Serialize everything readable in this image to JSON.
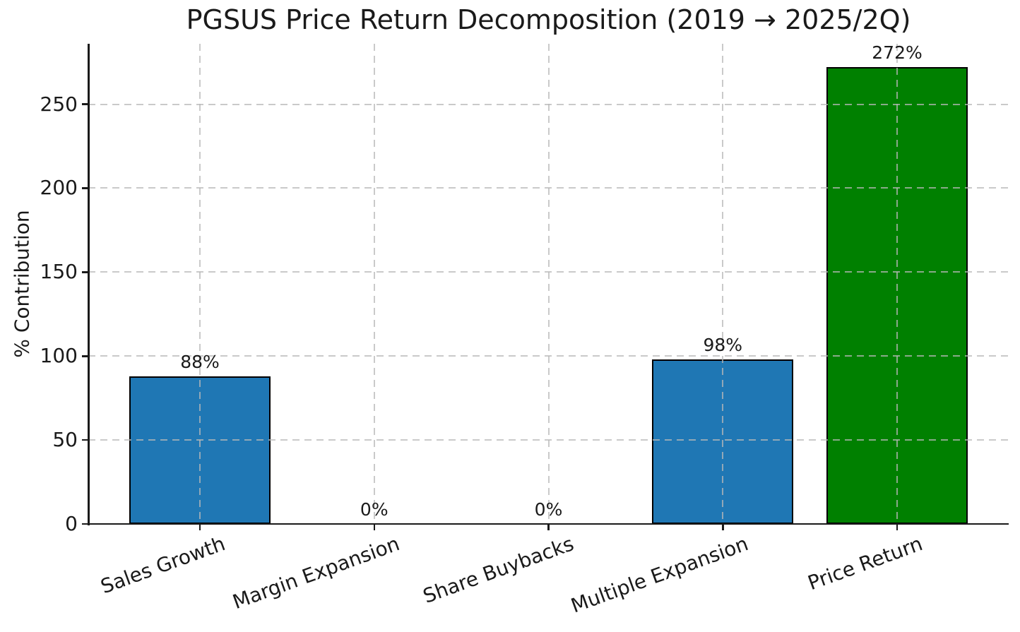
{
  "chart_data": {
    "type": "bar",
    "title": "PGSUS Price Return Decomposition (2019 → 2025/2Q)",
    "ylabel": "% Contribution",
    "xlabel": "",
    "categories": [
      "Sales Growth",
      "Margin Expansion",
      "Share Buybacks",
      "Multiple Expansion",
      "Price Return"
    ],
    "values": [
      88,
      0,
      0,
      98,
      272
    ],
    "value_labels": [
      "88%",
      "0%",
      "0%",
      "98%",
      "272%"
    ],
    "bar_colors": [
      "#1f77b4",
      "#1f77b4",
      "#1f77b4",
      "#1f77b4",
      "#008000"
    ],
    "bar_edge_color": "#000000",
    "ylim": [
      0,
      286
    ],
    "yticks": [
      0,
      50,
      100,
      150,
      200,
      250
    ],
    "ytick_labels": [
      "0",
      "50",
      "100",
      "150",
      "200",
      "250"
    ],
    "grid": {
      "visible": true,
      "style": "dashed",
      "axis": "both",
      "color": "#b8b8b8",
      "drawn_above_bars": true
    },
    "x_tick_rotation_deg": 20,
    "legend": "none",
    "text_color": "#1a1a1a",
    "background_color": "#ffffff"
  }
}
